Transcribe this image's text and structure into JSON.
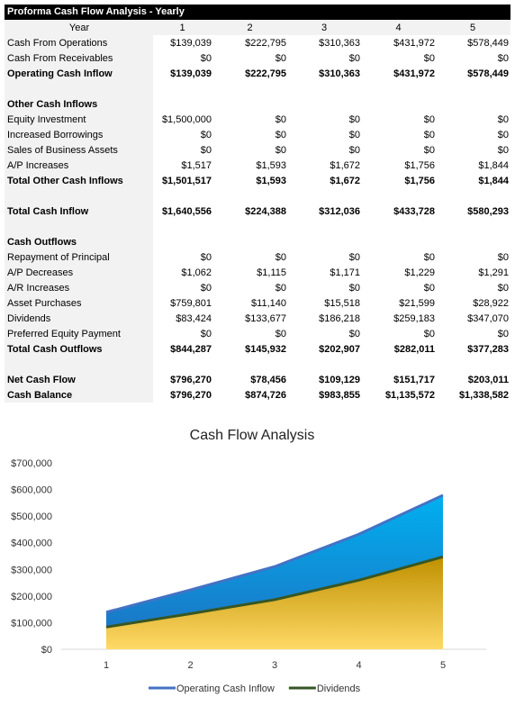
{
  "table": {
    "title": "Proforma Cash Flow Analysis - Yearly",
    "header": [
      "Year",
      "1",
      "2",
      "3",
      "4",
      "5"
    ],
    "sections": [
      {
        "rows": [
          [
            "Cash From Operations",
            "$139,039",
            "$222,795",
            "$310,363",
            "$431,972",
            "$578,449"
          ],
          [
            "Cash From Receivables",
            "$0",
            "$0",
            "$0",
            "$0",
            "$0"
          ]
        ],
        "totals": [
          [
            "Operating Cash Inflow",
            "$139,039",
            "$222,795",
            "$310,363",
            "$431,972",
            "$578,449"
          ]
        ]
      },
      {
        "title": "Other Cash Inflows",
        "rows": [
          [
            "Equity Investment",
            "$1,500,000",
            "$0",
            "$0",
            "$0",
            "$0"
          ],
          [
            "Increased Borrowings",
            "$0",
            "$0",
            "$0",
            "$0",
            "$0"
          ],
          [
            "Sales of Business Assets",
            "$0",
            "$0",
            "$0",
            "$0",
            "$0"
          ],
          [
            "A/P Increases",
            "$1,517",
            "$1,593",
            "$1,672",
            "$1,756",
            "$1,844"
          ]
        ],
        "totals": [
          [
            "Total Other Cash Inflows",
            "$1,501,517",
            "$1,593",
            "$1,672",
            "$1,756",
            "$1,844"
          ]
        ]
      },
      {
        "totals": [
          [
            "Total Cash Inflow",
            "$1,640,556",
            "$224,388",
            "$312,036",
            "$433,728",
            "$580,293"
          ]
        ]
      },
      {
        "title": "Cash Outflows",
        "rows": [
          [
            "Repayment of Principal",
            "$0",
            "$0",
            "$0",
            "$0",
            "$0"
          ],
          [
            "A/P Decreases",
            "$1,062",
            "$1,115",
            "$1,171",
            "$1,229",
            "$1,291"
          ],
          [
            "A/R Increases",
            "$0",
            "$0",
            "$0",
            "$0",
            "$0"
          ],
          [
            "Asset Purchases",
            "$759,801",
            "$11,140",
            "$15,518",
            "$21,599",
            "$28,922"
          ],
          [
            "Dividends",
            "$83,424",
            "$133,677",
            "$186,218",
            "$259,183",
            "$347,070"
          ],
          [
            "Preferred Equity Payment",
            "$0",
            "$0",
            "$0",
            "$0",
            "$0"
          ]
        ],
        "totals": [
          [
            "Total Cash Outflows",
            "$844,287",
            "$145,932",
            "$202,907",
            "$282,011",
            "$377,283"
          ]
        ]
      },
      {
        "totals": [
          [
            "Net Cash Flow",
            "$796,270",
            "$78,456",
            "$109,129",
            "$151,717",
            "$203,011"
          ],
          [
            "Cash Balance",
            "$796,270",
            "$874,726",
            "$983,855",
            "$1,135,572",
            "$1,338,582"
          ]
        ]
      }
    ]
  },
  "chart_data": {
    "type": "area",
    "title": "Cash Flow Analysis",
    "categories": [
      "1",
      "2",
      "3",
      "4",
      "5"
    ],
    "series": [
      {
        "name": "Operating Cash Inflow",
        "color": "#4472c4",
        "values": [
          139039,
          222795,
          310363,
          431972,
          578449
        ]
      },
      {
        "name": "Dividends",
        "color": "#375623",
        "values": [
          83424,
          133677,
          186218,
          259183,
          347070
        ]
      }
    ],
    "ylim": [
      0,
      700000
    ],
    "yticks": [
      {
        "value": 0,
        "label": "$0"
      },
      {
        "value": 100000,
        "label": "$100,000"
      },
      {
        "value": 200000,
        "label": "$200,000"
      },
      {
        "value": 300000,
        "label": "$300,000"
      },
      {
        "value": 400000,
        "label": "$400,000"
      },
      {
        "value": 500000,
        "label": "$500,000"
      },
      {
        "value": 600000,
        "label": "$600,000"
      },
      {
        "value": 700000,
        "label": "$700,000"
      }
    ],
    "legend": "bottom"
  }
}
